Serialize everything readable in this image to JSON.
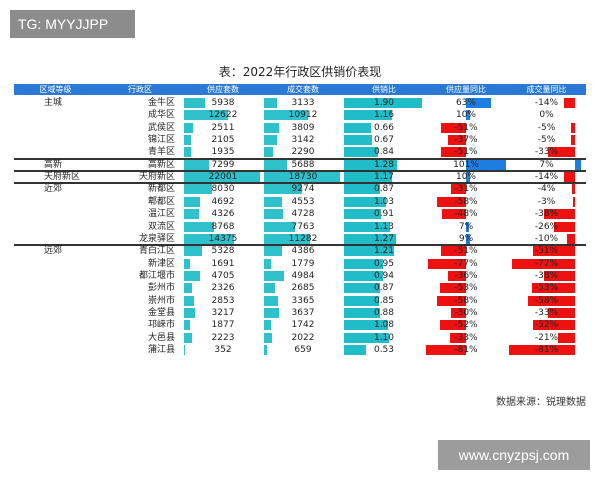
{
  "watermark_top": "TG: MYYJJPP",
  "watermark_bottom": "www.cnyzpsj.com",
  "source_note": "数据来源：锐理数据",
  "colors": {
    "header_bg": "#2b79d4",
    "supply_bar": "#2fc1cb",
    "deal_bar": "#2fc1cb",
    "ratio_bar": "#20bcc8",
    "yoy_positive": "#1e7de0",
    "yoy_negative": "#ee1111"
  },
  "chart_data": {
    "type": "table",
    "title": "表：2022年行政区供销价表现",
    "columns": [
      "区域等级",
      "行政区",
      "供应套数",
      "成交套数",
      "供销比",
      "供应量同比",
      "成交量同比"
    ],
    "rows": [
      {
        "tier": "主城",
        "district": "金牛区",
        "supply": 5938,
        "deal": 3133,
        "ratio": 1.9,
        "supply_yoy": "63%",
        "deal_yoy": "-14%",
        "sy": 0.63,
        "dy": -0.14
      },
      {
        "tier": "",
        "district": "成华区",
        "supply": 12622,
        "deal": 10912,
        "ratio": 1.16,
        "supply_yoy": "10%",
        "deal_yoy": "0%",
        "sy": 0.1,
        "dy": 0.0
      },
      {
        "tier": "",
        "district": "武侯区",
        "supply": 2511,
        "deal": 3809,
        "ratio": 0.66,
        "supply_yoy": "-51%",
        "deal_yoy": "-5%",
        "sy": -0.51,
        "dy": -0.05
      },
      {
        "tier": "",
        "district": "锦江区",
        "supply": 2105,
        "deal": 3142,
        "ratio": 0.67,
        "supply_yoy": "-37%",
        "deal_yoy": "-5%",
        "sy": -0.37,
        "dy": -0.05
      },
      {
        "tier": "",
        "district": "青羊区",
        "supply": 1935,
        "deal": 2290,
        "ratio": 0.84,
        "supply_yoy": "-51%",
        "deal_yoy": "-33%",
        "sy": -0.51,
        "dy": -0.33
      },
      {
        "tier": "高新",
        "district": "高新区",
        "supply": 7299,
        "deal": 5688,
        "ratio": 1.28,
        "supply_yoy": "101%",
        "deal_yoy": "7%",
        "sy": 1.01,
        "dy": 0.07
      },
      {
        "tier": "天府新区",
        "district": "天府新区",
        "supply": 22001,
        "deal": 18730,
        "ratio": 1.17,
        "supply_yoy": "10%",
        "deal_yoy": "-14%",
        "sy": 0.1,
        "dy": -0.14
      },
      {
        "tier": "近郊",
        "district": "新都区",
        "supply": 8030,
        "deal": 9274,
        "ratio": 0.87,
        "supply_yoy": "-31%",
        "deal_yoy": "-4%",
        "sy": -0.31,
        "dy": -0.04
      },
      {
        "tier": "",
        "district": "郫都区",
        "supply": 4692,
        "deal": 4553,
        "ratio": 1.03,
        "supply_yoy": "-58%",
        "deal_yoy": "-3%",
        "sy": -0.58,
        "dy": -0.03
      },
      {
        "tier": "",
        "district": "温江区",
        "supply": 4326,
        "deal": 4728,
        "ratio": 0.91,
        "supply_yoy": "-48%",
        "deal_yoy": "-38%",
        "sy": -0.48,
        "dy": -0.38
      },
      {
        "tier": "",
        "district": "双流区",
        "supply": 8768,
        "deal": 7763,
        "ratio": 1.13,
        "supply_yoy": "7%",
        "deal_yoy": "-26%",
        "sy": 0.07,
        "dy": -0.26
      },
      {
        "tier": "",
        "district": "龙泉驿区",
        "supply": 14375,
        "deal": 11282,
        "ratio": 1.27,
        "supply_yoy": "9%",
        "deal_yoy": "-10%",
        "sy": 0.09,
        "dy": -0.1
      },
      {
        "tier": "远郊",
        "district": "青白江区",
        "supply": 5328,
        "deal": 4386,
        "ratio": 1.21,
        "supply_yoy": "-51%",
        "deal_yoy": "-51%",
        "sy": -0.51,
        "dy": -0.51
      },
      {
        "tier": "",
        "district": "新津区",
        "supply": 1691,
        "deal": 1779,
        "ratio": 0.95,
        "supply_yoy": "-77%",
        "deal_yoy": "-77%",
        "sy": -0.77,
        "dy": -0.77
      },
      {
        "tier": "",
        "district": "都江堰市",
        "supply": 4705,
        "deal": 4984,
        "ratio": 0.94,
        "supply_yoy": "-36%",
        "deal_yoy": "-38%",
        "sy": -0.36,
        "dy": -0.38
      },
      {
        "tier": "",
        "district": "彭州市",
        "supply": 2326,
        "deal": 2685,
        "ratio": 0.87,
        "supply_yoy": "-53%",
        "deal_yoy": "-53%",
        "sy": -0.53,
        "dy": -0.53
      },
      {
        "tier": "",
        "district": "崇州市",
        "supply": 2853,
        "deal": 3365,
        "ratio": 0.85,
        "supply_yoy": "-58%",
        "deal_yoy": "-58%",
        "sy": -0.58,
        "dy": -0.58
      },
      {
        "tier": "",
        "district": "金堂县",
        "supply": 3217,
        "deal": 3637,
        "ratio": 0.88,
        "supply_yoy": "-30%",
        "deal_yoy": "-33%",
        "sy": -0.3,
        "dy": -0.33
      },
      {
        "tier": "",
        "district": "邛崃市",
        "supply": 1877,
        "deal": 1742,
        "ratio": 1.08,
        "supply_yoy": "-52%",
        "deal_yoy": "-52%",
        "sy": -0.52,
        "dy": -0.52
      },
      {
        "tier": "",
        "district": "大邑县",
        "supply": 2223,
        "deal": 2022,
        "ratio": 1.1,
        "supply_yoy": "-33%",
        "deal_yoy": "-21%",
        "sy": -0.33,
        "dy": -0.21
      },
      {
        "tier": "",
        "district": "蒲江县",
        "supply": 352,
        "deal": 659,
        "ratio": 0.53,
        "supply_yoy": "-81%",
        "deal_yoy": "-81%",
        "sy": -0.81,
        "dy": -0.81
      }
    ]
  }
}
